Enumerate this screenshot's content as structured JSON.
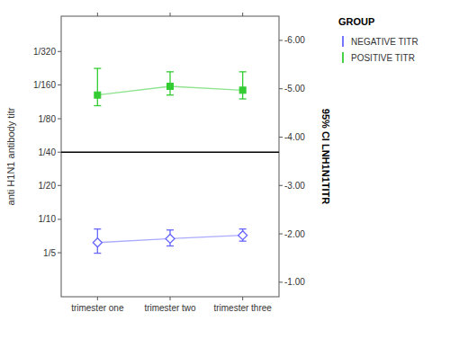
{
  "chart_data": {
    "type": "line",
    "categories": [
      "trimester one",
      "trimester two",
      "trimester three"
    ],
    "series": [
      {
        "name": "NEGATIVE TITR",
        "color": "#6666ff",
        "marker": "diamond",
        "line_style": "solid",
        "values": [
          -1.82,
          -1.9,
          -1.97
        ],
        "error_lower": [
          0.28,
          0.18,
          0.13
        ],
        "error_upper": [
          0.22,
          0.15,
          0.12
        ]
      },
      {
        "name": "POSITIVE TITR",
        "color": "#33cc33",
        "marker": "square",
        "line_style": "solid",
        "values": [
          -4.87,
          -5.05,
          -4.97
        ],
        "error_lower": [
          0.55,
          0.3,
          0.38
        ],
        "error_upper": [
          0.22,
          0.18,
          0.18
        ]
      }
    ],
    "y_label": "anti H1N1 antibody titr",
    "y2_label": "95% CI LNH1N1TITR",
    "ylim": [
      -0.7,
      -6.5
    ],
    "yticks": [
      {
        "value": -5.77,
        "label": "1/320"
      },
      {
        "value": -5.08,
        "label": "1/160"
      },
      {
        "value": -4.38,
        "label": "1/80"
      },
      {
        "value": -3.689,
        "label": "1/40"
      },
      {
        "value": -3.0,
        "label": "1/20"
      },
      {
        "value": -2.3,
        "label": "1/10"
      },
      {
        "value": -1.61,
        "label": "1/5"
      }
    ],
    "y2lim": [
      -0.7,
      -6.5
    ],
    "y2ticks": [
      {
        "value": -6.0,
        "label": "-6.00"
      },
      {
        "value": -5.0,
        "label": "-5.00"
      },
      {
        "value": -4.0,
        "label": "-4.00"
      },
      {
        "value": -3.0,
        "label": "-3.00"
      },
      {
        "value": -2.0,
        "label": "-2.00"
      },
      {
        "value": -1.0,
        "label": "-1.00"
      }
    ],
    "reference_lines": [
      {
        "value": -3.689,
        "color": "#000000"
      }
    ],
    "legend": "upper right",
    "legend_title": "GROUP",
    "grid": false
  }
}
